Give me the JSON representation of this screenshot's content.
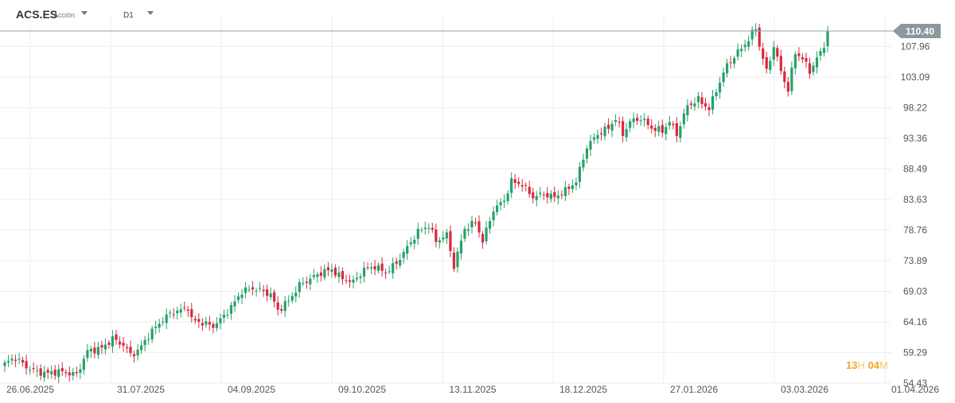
{
  "toolbar": {
    "symbol": "ACS.ES",
    "symbol_type": "Acción",
    "timeframe": "D1"
  },
  "countdown": {
    "hours": "13",
    "hours_unit": "H",
    "minutes": "04",
    "minutes_unit": "M"
  },
  "colors": {
    "up": "#26a269",
    "down": "#d9283f",
    "grid": "#eeeeee",
    "price_line": "#9aa3a8",
    "price_tag": "#8e979c",
    "countdown": "#f5a623"
  },
  "chart_data": {
    "type": "candlestick",
    "xlabel": "",
    "ylabel": "",
    "x_tick_labels": [
      "26.06.2025",
      "31.07.2025",
      "04.09.2025",
      "09.10.2025",
      "13.11.2025",
      "18.12.2025",
      "27.01.2026",
      "03.03.2026",
      "01.04.2026"
    ],
    "y_tick_labels": [
      "107.96",
      "103.09",
      "98.22",
      "93.36",
      "88.49",
      "83.63",
      "78.76",
      "73.89",
      "69.03",
      "64.16",
      "59.29",
      "54.43"
    ],
    "ylim": [
      54.43,
      112.8
    ],
    "last_price": "110.40",
    "grid": true,
    "close_path": [
      [
        0,
        57.5
      ],
      [
        3,
        58.5
      ],
      [
        6,
        57.0
      ],
      [
        9,
        56.2
      ],
      [
        12,
        56.0
      ],
      [
        15,
        56.3
      ],
      [
        18,
        56.0
      ],
      [
        20,
        55.8
      ],
      [
        23,
        59.5
      ],
      [
        27,
        60.0
      ],
      [
        30,
        61.5
      ],
      [
        33,
        60.5
      ],
      [
        35,
        59.0
      ],
      [
        37,
        59.5
      ],
      [
        40,
        62.0
      ],
      [
        43,
        64.0
      ],
      [
        46,
        65.5
      ],
      [
        49,
        66.0
      ],
      [
        51,
        66.5
      ],
      [
        52,
        64.5
      ],
      [
        55,
        64.0
      ],
      [
        58,
        63.5
      ],
      [
        60,
        64.5
      ],
      [
        63,
        66.5
      ],
      [
        66,
        69.0
      ],
      [
        69,
        69.5
      ],
      [
        72,
        69.0
      ],
      [
        74,
        68.5
      ],
      [
        76,
        66.0
      ],
      [
        79,
        67.5
      ],
      [
        82,
        70.0
      ],
      [
        85,
        71.0
      ],
      [
        88,
        72.0
      ],
      [
        91,
        72.5
      ],
      [
        94,
        71.0
      ],
      [
        97,
        70.5
      ],
      [
        100,
        72.5
      ],
      [
        103,
        73.0
      ],
      [
        106,
        72.0
      ],
      [
        109,
        73.5
      ],
      [
        112,
        76.0
      ],
      [
        115,
        78.5
      ],
      [
        118,
        79.5
      ],
      [
        120,
        77.0
      ],
      [
        123,
        78.0
      ],
      [
        125,
        73.0
      ],
      [
        128,
        79.0
      ],
      [
        131,
        80.0
      ],
      [
        133,
        77.0
      ],
      [
        136,
        82.0
      ],
      [
        139,
        83.5
      ],
      [
        141,
        86.5
      ],
      [
        144,
        86.0
      ],
      [
        147,
        84.0
      ],
      [
        150,
        84.5
      ],
      [
        153,
        84.0
      ],
      [
        156,
        85.0
      ],
      [
        159,
        86.5
      ],
      [
        162,
        92.0
      ],
      [
        165,
        94.0
      ],
      [
        168,
        95.0
      ],
      [
        170,
        96.5
      ],
      [
        172,
        94.0
      ],
      [
        174,
        96.0
      ],
      [
        177,
        96.5
      ],
      [
        180,
        95.0
      ],
      [
        183,
        94.5
      ],
      [
        185,
        96.0
      ],
      [
        187,
        94.0
      ],
      [
        190,
        98.5
      ],
      [
        193,
        99.5
      ],
      [
        196,
        98.0
      ],
      [
        198,
        101.0
      ],
      [
        201,
        105.0
      ],
      [
        204,
        107.0
      ],
      [
        207,
        109.0
      ],
      [
        209,
        111.0
      ],
      [
        210,
        108.0
      ],
      [
        212,
        104.0
      ],
      [
        214,
        108.0
      ],
      [
        216,
        104.0
      ],
      [
        218,
        101.0
      ],
      [
        220,
        107.0
      ],
      [
        222,
        106.0
      ],
      [
        224,
        104.0
      ],
      [
        226,
        106.0
      ],
      [
        228,
        108.0
      ],
      [
        229,
        110.4
      ]
    ]
  }
}
